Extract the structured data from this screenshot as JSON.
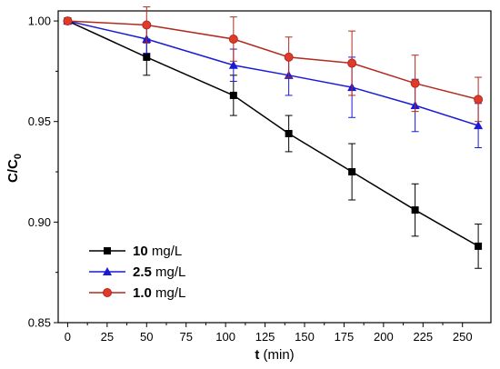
{
  "chart_data": {
    "type": "line",
    "xlabel": {
      "main": "t",
      "unit": " (min)"
    },
    "ylabel": {
      "main": "C/C",
      "sub": "0"
    },
    "xlim": [
      -6,
      268
    ],
    "ylim": [
      0.85,
      1.005
    ],
    "xticks": [
      0,
      25,
      50,
      75,
      100,
      125,
      150,
      175,
      200,
      225,
      250
    ],
    "yticks": [
      0.85,
      0.9,
      0.95,
      1.0
    ],
    "xtick_labels": [
      "0",
      "25",
      "50",
      "75",
      "100",
      "125",
      "150",
      "175",
      "200",
      "225",
      "250"
    ],
    "ytick_labels": [
      "0.85",
      "0.90",
      "0.95",
      "1.00"
    ],
    "legend_position": "bottom-left",
    "series": [
      {
        "name_value": "10",
        "name_unit": " mg/L",
        "color": "#000000",
        "marker": "square",
        "x": [
          0,
          50,
          105,
          140,
          180,
          220,
          260
        ],
        "y": [
          1.0,
          0.982,
          0.963,
          0.944,
          0.925,
          0.906,
          0.888
        ],
        "err": [
          0.0,
          0.009,
          0.01,
          0.009,
          0.014,
          0.013,
          0.011
        ]
      },
      {
        "name_value": "2.5",
        "name_unit": " mg/L",
        "color": "#1a1ad6",
        "marker": "triangle",
        "x": [
          0,
          50,
          105,
          140,
          180,
          220,
          260
        ],
        "y": [
          1.0,
          0.991,
          0.978,
          0.973,
          0.967,
          0.958,
          0.948
        ],
        "err": [
          0.0,
          0.007,
          0.008,
          0.01,
          0.015,
          0.013,
          0.011
        ]
      },
      {
        "name_value": "1.0",
        "name_unit": " mg/L",
        "color": "#b22a1e",
        "marker": "circle",
        "x": [
          0,
          50,
          105,
          140,
          180,
          220,
          260
        ],
        "y": [
          1.0,
          0.998,
          0.991,
          0.982,
          0.979,
          0.969,
          0.961
        ],
        "err": [
          0.0,
          0.009,
          0.011,
          0.01,
          0.016,
          0.014,
          0.011
        ]
      }
    ]
  }
}
